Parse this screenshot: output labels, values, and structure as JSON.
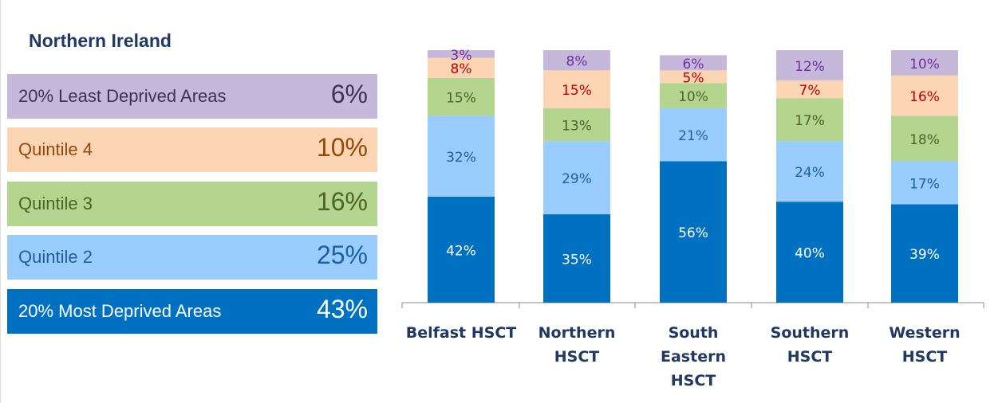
{
  "chart_data": {
    "type": "stacked_bar",
    "panel": {
      "title": "Northern Ireland",
      "values": [
        6,
        10,
        16,
        25,
        43
      ],
      "value_labels": [
        "6%",
        "10%",
        "16%",
        "25%",
        "43%"
      ]
    },
    "categories": [
      "Belfast HSCT",
      "Northern HSCT",
      "South Eastern HSCT",
      "Southern HSCT",
      "Western HSCT"
    ],
    "series": [
      {
        "name": "20% Most Deprived Areas",
        "color": "#0070c0",
        "values": [
          42,
          35,
          56,
          40,
          39
        ],
        "value_labels": [
          "42%",
          "35%",
          "56%",
          "40%",
          "39%"
        ]
      },
      {
        "name": "Quintile 2",
        "color": "#99ccff",
        "values": [
          32,
          29,
          21,
          24,
          17
        ],
        "value_labels": [
          "32%",
          "29%",
          "21%",
          "24%",
          "17%"
        ]
      },
      {
        "name": "Quintile 3",
        "color": "#b3d58f",
        "values": [
          15,
          13,
          10,
          17,
          18
        ],
        "value_labels": [
          "15%",
          "13%",
          "10%",
          "17%",
          "18%"
        ]
      },
      {
        "name": "Quintile 4",
        "color": "#fcd5b4",
        "values": [
          8,
          15,
          5,
          7,
          16
        ],
        "value_labels": [
          "8%",
          "15%",
          "5%",
          "7%",
          "16%"
        ]
      },
      {
        "name": "20% Least Deprived Areas",
        "color": "#c6b8da",
        "values": [
          3,
          8,
          6,
          12,
          10
        ],
        "value_labels": [
          "3%",
          "8%",
          "6%",
          "12%",
          "10%"
        ]
      }
    ],
    "ylim": [
      0,
      100
    ]
  }
}
